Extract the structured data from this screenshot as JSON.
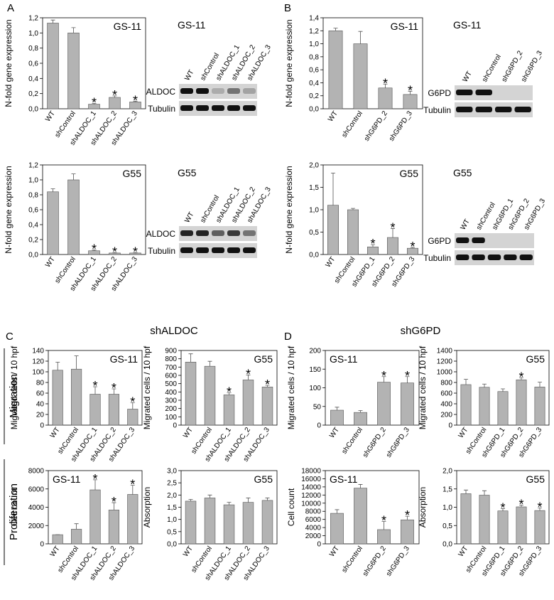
{
  "panels": [
    "A",
    "B",
    "C",
    "D"
  ],
  "section_titles": [
    "shALDOC",
    "shG6PD"
  ],
  "row_labels": [
    "Migration",
    "Proliferation"
  ],
  "blots": [
    {
      "title": "GS-11",
      "lanes": [
        "WT",
        "shControl",
        "shALDOC_1",
        "shALDOC_2",
        "shALDOC_3"
      ],
      "rows": [
        "ALDOC",
        "Tubulin"
      ]
    },
    {
      "title": "G55",
      "lanes": [
        "WT",
        "shControl",
        "shALDOC_1",
        "shALDOC_2",
        "shALDOC_3"
      ],
      "rows": [
        "ALDOC",
        "Tubulin"
      ]
    },
    {
      "title": "GS-11",
      "lanes": [
        "WT",
        "shControl",
        "shG6PD_2",
        "shG6PD_3"
      ],
      "rows": [
        "G6PD",
        "Tubulin"
      ]
    },
    {
      "title": "G55",
      "lanes": [
        "WT",
        "shControl",
        "shG6PD_1",
        "shG6PD_2",
        "shG6PD_3"
      ],
      "rows": [
        "G6PD",
        "Tubulin"
      ]
    }
  ],
  "chart_data": [
    {
      "type": "bar",
      "label": "GS-11",
      "ylabel": "N-fold gene expression",
      "color": "#b3b3b3",
      "categories": [
        "WT",
        "shControl",
        "shALDOC_1",
        "shALDOC_2",
        "shALDOC_3"
      ],
      "values": [
        1.13,
        1.0,
        0.06,
        0.15,
        0.09
      ],
      "errors": [
        0.04,
        0.07,
        0.01,
        0.02,
        0.01
      ],
      "markers": [
        null,
        null,
        "*",
        "*",
        "*"
      ],
      "ylim": [
        0,
        1.2
      ],
      "yticks": [
        {
          "value": 0,
          "label": "0,0"
        },
        {
          "value": 0.2,
          "label": "0,2"
        },
        {
          "value": 0.4,
          "label": "0,4"
        },
        {
          "value": 0.6,
          "label": "0,6"
        },
        {
          "value": 0.8,
          "label": "0,8"
        },
        {
          "value": 1.0,
          "label": "1,0"
        },
        {
          "value": 1.2,
          "label": "1,2"
        }
      ]
    },
    {
      "type": "bar",
      "label": "G55",
      "ylabel": "N-fold gene expression",
      "color": "#b3b3b3",
      "categories": [
        "WT",
        "shControl",
        "shALDOC_1",
        "shALDOC_2",
        "shALDOC_3"
      ],
      "values": [
        0.84,
        1.0,
        0.05,
        0.02,
        0.02
      ],
      "errors": [
        0.04,
        0.08,
        0.01,
        0.005,
        0.005
      ],
      "markers": [
        null,
        null,
        "*",
        "*",
        "*"
      ],
      "ylim": [
        0,
        1.2
      ],
      "yticks": [
        {
          "value": 0,
          "label": "0,0"
        },
        {
          "value": 0.2,
          "label": "0,2"
        },
        {
          "value": 0.4,
          "label": "0,4"
        },
        {
          "value": 0.6,
          "label": "0,6"
        },
        {
          "value": 0.8,
          "label": "0,8"
        },
        {
          "value": 1.0,
          "label": "1,0"
        },
        {
          "value": 1.2,
          "label": "1,2"
        }
      ]
    },
    {
      "type": "bar",
      "label": "GS-11",
      "ylabel": "N-fold gene expression",
      "color": "#b3b3b3",
      "categories": [
        "WT",
        "shControl",
        "shG6PD_2",
        "shG6PD_3"
      ],
      "values": [
        1.2,
        1.0,
        0.32,
        0.22
      ],
      "errors": [
        0.04,
        0.19,
        0.06,
        0.05
      ],
      "markers": [
        null,
        null,
        "*",
        "*"
      ],
      "ylim": [
        0,
        1.4
      ],
      "yticks": [
        {
          "value": 0,
          "label": "0,0"
        },
        {
          "value": 0.2,
          "label": "0,2"
        },
        {
          "value": 0.4,
          "label": "0,4"
        },
        {
          "value": 0.6,
          "label": "0,6"
        },
        {
          "value": 0.8,
          "label": "0,8"
        },
        {
          "value": 1.0,
          "label": "1,0"
        },
        {
          "value": 1.2,
          "label": "1,2"
        },
        {
          "value": 1.4,
          "label": "1,4"
        }
      ]
    },
    {
      "type": "bar",
      "label": "G55",
      "ylabel": "N-fold gene expression",
      "color": "#b3b3b3",
      "categories": [
        "WT",
        "shControl",
        "shG6PD_1",
        "shG6PD_2",
        "shG6PD_3"
      ],
      "values": [
        1.1,
        1.0,
        0.17,
        0.38,
        0.14
      ],
      "errors": [
        0.72,
        0.03,
        0.05,
        0.2,
        0.02
      ],
      "markers": [
        null,
        null,
        "*",
        "*",
        "*"
      ],
      "ylim": [
        0,
        2.0
      ],
      "yticks": [
        {
          "value": 0,
          "label": "0,0"
        },
        {
          "value": 0.5,
          "label": "0,5"
        },
        {
          "value": 1.0,
          "label": "1,0"
        },
        {
          "value": 1.5,
          "label": "1,5"
        },
        {
          "value": 2.0,
          "label": "2,0"
        }
      ]
    },
    {
      "type": "bar",
      "label": "GS-11",
      "ylabel": "Migrated cells / 10 hpf",
      "color": "#b3b3b3",
      "categories": [
        "WT",
        "shControl",
        "shALDOC_1",
        "shALDOC_2",
        "shALDOC_3"
      ],
      "values": [
        103,
        105,
        58,
        58,
        30
      ],
      "errors": [
        15,
        25,
        14,
        10,
        12
      ],
      "markers": [
        null,
        null,
        "*",
        "*",
        "*"
      ],
      "ylim": [
        0,
        140
      ],
      "yticks": [
        0,
        20,
        40,
        60,
        80,
        100,
        120,
        140
      ]
    },
    {
      "type": "bar",
      "label": "G55",
      "ylabel": "Migrated cells / 10 hpf",
      "color": "#b3b3b3",
      "categories": [
        "WT",
        "shControl",
        "shALDOC_1",
        "shALDOC_2",
        "shALDOC_3"
      ],
      "values": [
        760,
        710,
        365,
        545,
        460
      ],
      "errors": [
        100,
        60,
        25,
        60,
        20
      ],
      "markers": [
        null,
        null,
        "*",
        "*",
        "*"
      ],
      "ylim": [
        0,
        900
      ],
      "yticks": [
        0,
        100,
        200,
        300,
        400,
        500,
        600,
        700,
        800,
        900
      ]
    },
    {
      "type": "bar",
      "label": "GS-11",
      "ylabel": "Cell count",
      "color": "#b3b3b3",
      "categories": [
        "WT",
        "shControl",
        "shALDOC_1",
        "shALDOC_2",
        "shALDOC_3"
      ],
      "values": [
        1000,
        1600,
        5900,
        3700,
        5400
      ],
      "errors": [
        0,
        600,
        1100,
        800,
        1000
      ],
      "markers": [
        null,
        null,
        "*",
        "*",
        "*"
      ],
      "ylim": [
        0,
        8000
      ],
      "yticks": [
        0,
        2000,
        4000,
        6000,
        8000
      ]
    },
    {
      "type": "bar",
      "label": "G55",
      "ylabel": "Absorption",
      "color": "#b3b3b3",
      "categories": [
        "WT",
        "shControl",
        "shALDOC_1",
        "shALDOC_2",
        "shALDOC_3"
      ],
      "values": [
        1.75,
        1.88,
        1.6,
        1.7,
        1.78
      ],
      "errors": [
        0.07,
        0.12,
        0.1,
        0.18,
        0.1
      ],
      "ylim": [
        0,
        3.0
      ],
      "yticks": [
        {
          "value": 0,
          "label": "0,0"
        },
        {
          "value": 0.5,
          "label": "0,5"
        },
        {
          "value": 1.0,
          "label": "1,0"
        },
        {
          "value": 1.5,
          "label": "1,5"
        },
        {
          "value": 2.0,
          "label": "2,0"
        },
        {
          "value": 2.5,
          "label": "2,5"
        },
        {
          "value": 3.0,
          "label": "3,0"
        }
      ]
    },
    {
      "type": "bar",
      "label": "GS-11",
      "ylabel": "Migrated cells / 10 hpf",
      "color": "#b3b3b3",
      "categories": [
        "WT",
        "shControl",
        "shG6PD_2",
        "shG6PD_3"
      ],
      "values": [
        40,
        34,
        115,
        113
      ],
      "errors": [
        8,
        5,
        15,
        17
      ],
      "markers": [
        null,
        null,
        "*",
        "*"
      ],
      "ylim": [
        0,
        200
      ],
      "yticks": [
        0,
        50,
        100,
        150,
        200
      ]
    },
    {
      "type": "bar",
      "label": "G55",
      "ylabel": "Migrated cells / 10 hpf",
      "color": "#b3b3b3",
      "categories": [
        "WT",
        "shControl",
        "shG6PD_1",
        "shG6PD_2",
        "shG6PD_3"
      ],
      "values": [
        760,
        710,
        630,
        850,
        715
      ],
      "errors": [
        100,
        60,
        50,
        40,
        90
      ],
      "markers": [
        null,
        null,
        null,
        "*",
        null
      ],
      "ylim": [
        0,
        1400
      ],
      "yticks": [
        0,
        200,
        400,
        600,
        800,
        1000,
        1200,
        1400
      ]
    },
    {
      "type": "bar",
      "label": "GS-11",
      "ylabel": "Cell count",
      "color": "#b3b3b3",
      "categories": [
        "WT",
        "shControl",
        "shG6PD_2",
        "shG6PD_3"
      ],
      "values": [
        7500,
        13700,
        3500,
        5900
      ],
      "errors": [
        900,
        900,
        2000,
        900
      ],
      "markers": [
        null,
        null,
        "*",
        "*"
      ],
      "ylim": [
        0,
        18000
      ],
      "yticks": [
        0,
        2000,
        4000,
        6000,
        8000,
        10000,
        12000,
        14000,
        16000,
        18000
      ]
    },
    {
      "type": "bar",
      "label": "G55",
      "ylabel": "Absorption",
      "color": "#b3b3b3",
      "categories": [
        "WT",
        "shControl",
        "shG6PD_1",
        "shG6PD_2",
        "shG6PD_3"
      ],
      "values": [
        1.37,
        1.33,
        0.9,
        1.01,
        0.91
      ],
      "errors": [
        0.1,
        0.12,
        0.06,
        0.05,
        0.07
      ],
      "markers": [
        null,
        null,
        "*",
        "*",
        "*"
      ],
      "ylim": [
        0,
        2.0
      ],
      "yticks": [
        {
          "value": 0,
          "label": "0,0"
        },
        {
          "value": 0.5,
          "label": "0,5"
        },
        {
          "value": 1.0,
          "label": "1,0"
        },
        {
          "value": 1.5,
          "label": "1,5"
        },
        {
          "value": 2.0,
          "label": "2,0"
        }
      ]
    }
  ]
}
